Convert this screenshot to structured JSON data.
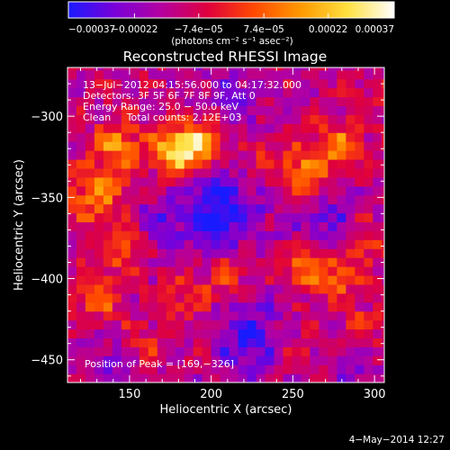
{
  "chart_data": {
    "type": "heatmap",
    "title": "Reconstructed RHESSI Image",
    "xlabel": "Heliocentric X (arcsec)",
    "ylabel": "Heliocentric Y (arcsec)",
    "xlim": [
      112,
      306
    ],
    "ylim": [
      -464,
      -270
    ],
    "x_ticks": [
      150,
      200,
      250,
      300
    ],
    "y_ticks": [
      -300,
      -350,
      -400,
      -450
    ],
    "x_tick_labels": [
      "150",
      "200",
      "250",
      "300"
    ],
    "y_tick_labels": [
      "−300",
      "−350",
      "−400",
      "−450"
    ],
    "colorbar": {
      "range": [
        -0.00037,
        0.00037
      ],
      "ticks": [
        -0.00037,
        -0.00022,
        -7.4e-05,
        7.4e-05,
        0.00022,
        0.00037
      ],
      "tick_labels": [
        "−0.00037",
        "−0.00022",
        "−7.4e−05",
        "7.4e−05",
        "0.00022",
        "0.00037"
      ],
      "unit_label": "(photons cm⁻² s⁻¹ asec⁻²)",
      "colors": [
        "#1a1aff",
        "#7a00d8",
        "#b400a0",
        "#e0003c",
        "#ff4a00",
        "#ff9a00",
        "#ffe040",
        "#ffffff"
      ]
    },
    "annotations": [
      "13−Jul−2012 04:15:56.000 to 04:17:32.000",
      "Detectors: 3F 5F 6F 7F 8F 9F, Att 0",
      "Energy Range: 25.0 − 50.0 keV",
      "Clean     Total counts: 2.12E+03"
    ],
    "peak_label": "Position of Peak = [169,−326]",
    "peak": [
      169,
      -326
    ],
    "hotspots": [
      {
        "x": 178,
        "y": -322,
        "v": 0.00037,
        "s": 10
      },
      {
        "x": 193,
        "y": -316,
        "v": 0.0003,
        "s": 9
      },
      {
        "x": 143,
        "y": -318,
        "v": 0.00024,
        "s": 10
      },
      {
        "x": 130,
        "y": -348,
        "v": 0.00022,
        "s": 12
      },
      {
        "x": 145,
        "y": -380,
        "v": 0.00018,
        "s": 10
      },
      {
        "x": 258,
        "y": -335,
        "v": 0.00026,
        "s": 11
      },
      {
        "x": 278,
        "y": -318,
        "v": 0.0002,
        "s": 10
      },
      {
        "x": 228,
        "y": -330,
        "v": 0.00012,
        "s": 9
      },
      {
        "x": 255,
        "y": -392,
        "v": 0.00024,
        "s": 9
      },
      {
        "x": 278,
        "y": -398,
        "v": 0.0002,
        "s": 9
      },
      {
        "x": 295,
        "y": -378,
        "v": 0.00016,
        "s": 8
      },
      {
        "x": 210,
        "y": -395,
        "v": 0.00018,
        "s": 10
      },
      {
        "x": 185,
        "y": -410,
        "v": 0.00014,
        "s": 10
      },
      {
        "x": 130,
        "y": -412,
        "v": 0.00016,
        "s": 11
      },
      {
        "x": 160,
        "y": -440,
        "v": 0.0001,
        "s": 10
      },
      {
        "x": 248,
        "y": -445,
        "v": 0.00012,
        "s": 9
      },
      {
        "x": 292,
        "y": -430,
        "v": 0.00014,
        "s": 8
      },
      {
        "x": 300,
        "y": -290,
        "v": 8e-05,
        "s": 8
      },
      {
        "x": 215,
        "y": -288,
        "v": -0.0001,
        "s": 14
      },
      {
        "x": 205,
        "y": -360,
        "v": -0.00024,
        "s": 20
      },
      {
        "x": 268,
        "y": -362,
        "v": -0.00014,
        "s": 14
      },
      {
        "x": 165,
        "y": -365,
        "v": -0.00012,
        "s": 10
      },
      {
        "x": 225,
        "y": -438,
        "v": -0.0002,
        "s": 16
      },
      {
        "x": 138,
        "y": -452,
        "v": -0.00012,
        "s": 12
      },
      {
        "x": 290,
        "y": -455,
        "v": -0.0001,
        "s": 10
      }
    ]
  },
  "footer": {
    "date": "4−May−2014 12:27"
  }
}
